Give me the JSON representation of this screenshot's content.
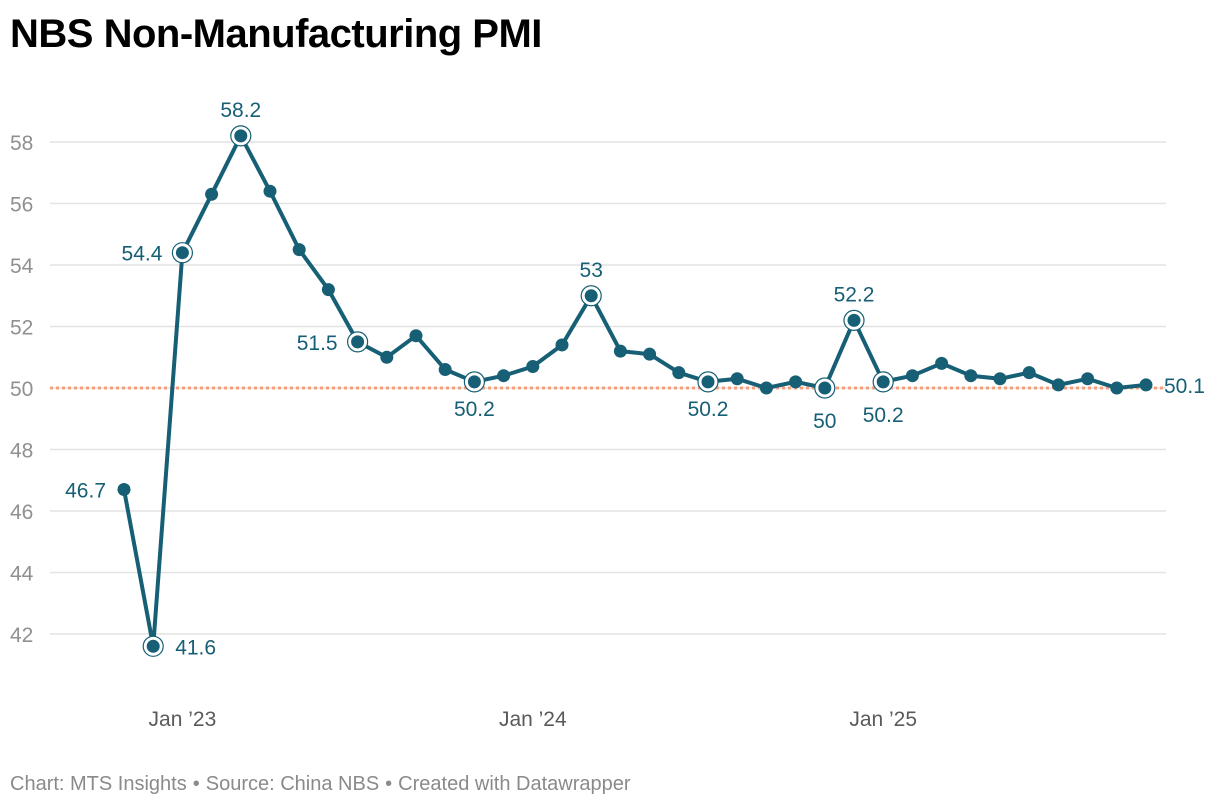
{
  "title": "NBS Non-Manufacturing PMI",
  "footer": {
    "chart_by": "Chart: MTS Insights",
    "source": "Source: China NBS",
    "created": "Created with Datawrapper",
    "separator": "•"
  },
  "colors": {
    "line": "#165f75",
    "reference": "#f4a07f",
    "grid": "#e2e2e2"
  },
  "chart_data": {
    "type": "line",
    "title": "NBS Non-Manufacturing PMI",
    "xlabel": "",
    "ylabel": "",
    "ylim": [
      40.5,
      58.5
    ],
    "yticks": [
      42,
      44,
      46,
      48,
      50,
      52,
      54,
      56,
      58
    ],
    "xticks": [
      {
        "label": "Jan ’23",
        "date": "2023-01"
      },
      {
        "label": "Jan ’24",
        "date": "2024-01"
      },
      {
        "label": "Jan ’25",
        "date": "2025-01"
      }
    ],
    "reference_line": 50,
    "grid": true,
    "series": [
      {
        "values": [
          {
            "date": "2022-11",
            "value": 46.7,
            "label": "46.7"
          },
          {
            "date": "2022-12",
            "value": 41.6,
            "label": "41.6"
          },
          {
            "date": "2023-01",
            "value": 54.4,
            "label": "54.4"
          },
          {
            "date": "2023-02",
            "value": 56.3
          },
          {
            "date": "2023-03",
            "value": 58.2,
            "label": "58.2"
          },
          {
            "date": "2023-04",
            "value": 56.4
          },
          {
            "date": "2023-05",
            "value": 54.5
          },
          {
            "date": "2023-06",
            "value": 53.2
          },
          {
            "date": "2023-07",
            "value": 51.5,
            "label": "51.5"
          },
          {
            "date": "2023-08",
            "value": 51.0
          },
          {
            "date": "2023-09",
            "value": 51.7
          },
          {
            "date": "2023-10",
            "value": 50.6
          },
          {
            "date": "2023-11",
            "value": 50.2,
            "label": "50.2"
          },
          {
            "date": "2023-12",
            "value": 50.4
          },
          {
            "date": "2024-01",
            "value": 50.7
          },
          {
            "date": "2024-02",
            "value": 51.4
          },
          {
            "date": "2024-03",
            "value": 53.0,
            "label": "53"
          },
          {
            "date": "2024-04",
            "value": 51.2
          },
          {
            "date": "2024-05",
            "value": 51.1
          },
          {
            "date": "2024-06",
            "value": 50.5
          },
          {
            "date": "2024-07",
            "value": 50.2,
            "label": "50.2"
          },
          {
            "date": "2024-08",
            "value": 50.3
          },
          {
            "date": "2024-09",
            "value": 50.0
          },
          {
            "date": "2024-10",
            "value": 50.2
          },
          {
            "date": "2024-11",
            "value": 50.0,
            "label": "50"
          },
          {
            "date": "2024-12",
            "value": 52.2,
            "label": "52.2"
          },
          {
            "date": "2025-01",
            "value": 50.2,
            "label": "50.2"
          },
          {
            "date": "2025-02",
            "value": 50.4
          },
          {
            "date": "2025-03",
            "value": 50.8
          },
          {
            "date": "2025-04",
            "value": 50.4
          },
          {
            "date": "2025-05",
            "value": 50.3
          },
          {
            "date": "2025-06",
            "value": 50.5
          },
          {
            "date": "2025-07",
            "value": 50.1
          },
          {
            "date": "2025-08",
            "value": 50.3
          },
          {
            "date": "2025-09",
            "value": 50.0
          },
          {
            "date": "2025-10",
            "value": 50.1,
            "label": "50.1"
          }
        ]
      }
    ]
  }
}
